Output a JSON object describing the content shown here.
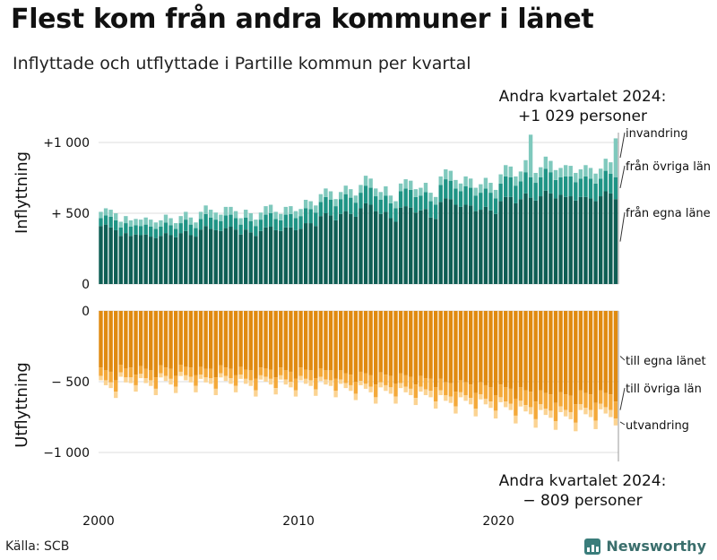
{
  "title": "Flest kom från andra kommuner i länet",
  "subtitle": "Inflyttade och utflyttade i Partille kommun per kvartal",
  "annotation_top": [
    "Andra kvartalet 2024:",
    "+1 029 personer"
  ],
  "annotation_bottom": [
    "Andra kvartalet 2024:",
    "−  809 personer"
  ],
  "source": "Källa: SCB",
  "brand": "Newsworthy",
  "chart_data": [
    {
      "type": "bar",
      "stacked": true,
      "ylabel": "Inflyttning",
      "ylim": [
        0,
        1100
      ],
      "yticks": [
        0,
        500,
        1000
      ],
      "ytick_labels": [
        "0",
        "+  500",
        "+1 000"
      ],
      "x_start": "2000 Q1",
      "xticks": [
        2000,
        2010,
        2020
      ],
      "grid": true,
      "series": [
        {
          "name": "från egna läne",
          "color": "#0e5e54",
          "values": [
            410,
            420,
            400,
            380,
            340,
            360,
            340,
            350,
            345,
            350,
            335,
            325,
            340,
            360,
            345,
            330,
            360,
            375,
            345,
            335,
            385,
            410,
            390,
            380,
            375,
            395,
            405,
            385,
            350,
            385,
            365,
            340,
            375,
            400,
            405,
            380,
            375,
            400,
            400,
            380,
            390,
            430,
            430,
            410,
            480,
            500,
            485,
            450,
            495,
            515,
            495,
            475,
            535,
            570,
            560,
            515,
            495,
            510,
            465,
            440,
            540,
            550,
            540,
            505,
            520,
            530,
            470,
            460,
            580,
            605,
            600,
            560,
            545,
            560,
            555,
            515,
            525,
            545,
            520,
            495,
            585,
            615,
            615,
            570,
            600,
            640,
            610,
            590,
            620,
            660,
            640,
            605,
            630,
            615,
            620,
            590,
            615,
            615,
            605,
            585,
            620,
            655,
            640,
            600
          ]
        },
        {
          "name": "från övriga län",
          "color": "#1e9485",
          "values": [
            55,
            65,
            75,
            70,
            60,
            70,
            65,
            65,
            65,
            70,
            70,
            65,
            65,
            75,
            70,
            60,
            70,
            80,
            75,
            60,
            75,
            85,
            80,
            75,
            70,
            90,
            85,
            80,
            70,
            85,
            80,
            70,
            80,
            90,
            95,
            80,
            75,
            90,
            95,
            85,
            90,
            105,
            100,
            95,
            100,
            115,
            110,
            100,
            105,
            120,
            115,
            100,
            110,
            125,
            120,
            105,
            100,
            115,
            105,
            95,
            115,
            125,
            125,
            110,
            105,
            120,
            115,
            100,
            120,
            135,
            130,
            115,
            110,
            130,
            125,
            110,
            120,
            130,
            125,
            110,
            125,
            145,
            140,
            125,
            125,
            150,
            145,
            125,
            135,
            155,
            150,
            130,
            125,
            145,
            140,
            130,
            130,
            145,
            140,
            125,
            125,
            145,
            140,
            155
          ]
        },
        {
          "name": "invandring",
          "color": "#7fc9bd",
          "values": [
            45,
            50,
            50,
            50,
            40,
            50,
            45,
            45,
            45,
            50,
            50,
            45,
            45,
            55,
            50,
            40,
            50,
            55,
            50,
            40,
            50,
            60,
            55,
            50,
            45,
            60,
            55,
            50,
            45,
            55,
            55,
            45,
            50,
            60,
            60,
            50,
            45,
            55,
            55,
            50,
            50,
            60,
            55,
            50,
            55,
            60,
            60,
            50,
            50,
            60,
            60,
            50,
            55,
            70,
            65,
            55,
            55,
            65,
            55,
            50,
            55,
            65,
            65,
            55,
            55,
            65,
            60,
            55,
            60,
            70,
            70,
            60,
            55,
            70,
            65,
            55,
            60,
            75,
            70,
            60,
            65,
            80,
            75,
            65,
            70,
            85,
            300,
            70,
            70,
            85,
            80,
            70,
            65,
            80,
            75,
            65,
            65,
            80,
            75,
            70,
            70,
            85,
            80,
            274
          ]
        }
      ]
    },
    {
      "type": "bar",
      "stacked": true,
      "ylabel": "Utflyttning",
      "ylim": [
        -1100,
        0
      ],
      "yticks": [
        0,
        -500,
        -1000
      ],
      "ytick_labels": [
        "0",
        "−  500",
        "−1 000"
      ],
      "x_start": "2000 Q1",
      "xticks": [
        2000,
        2010,
        2020
      ],
      "grid": true,
      "series": [
        {
          "name": "till egna länet",
          "color": "#e08a10",
          "values": [
            -400,
            -420,
            -430,
            -490,
            -380,
            -405,
            -400,
            -450,
            -390,
            -410,
            -420,
            -470,
            -385,
            -400,
            -410,
            -460,
            -380,
            -395,
            -400,
            -455,
            -395,
            -410,
            -410,
            -470,
            -385,
            -400,
            -410,
            -455,
            -395,
            -415,
            -420,
            -480,
            -400,
            -405,
            -415,
            -470,
            -400,
            -420,
            -430,
            -480,
            -400,
            -415,
            -420,
            -475,
            -405,
            -420,
            -420,
            -480,
            -420,
            -440,
            -450,
            -500,
            -430,
            -440,
            -455,
            -520,
            -435,
            -450,
            -460,
            -515,
            -440,
            -455,
            -465,
            -520,
            -460,
            -475,
            -480,
            -540,
            -480,
            -505,
            -510,
            -570,
            -490,
            -505,
            -520,
            -580,
            -505,
            -525,
            -540,
            -595,
            -520,
            -540,
            -550,
            -620,
            -540,
            -560,
            -570,
            -640,
            -560,
            -580,
            -590,
            -650,
            -575,
            -590,
            -600,
            -660,
            -560,
            -580,
            -590,
            -650,
            -560,
            -580,
            -590,
            -640
          ]
        },
        {
          "name": "till övriga län",
          "color": "#f4a93a",
          "values": [
            -60,
            -70,
            -75,
            -80,
            -55,
            -65,
            -70,
            -75,
            -55,
            -65,
            -70,
            -80,
            -55,
            -60,
            -70,
            -75,
            -50,
            -60,
            -65,
            -75,
            -55,
            -60,
            -65,
            -80,
            -55,
            -60,
            -65,
            -75,
            -55,
            -65,
            -70,
            -80,
            -55,
            -60,
            -65,
            -75,
            -55,
            -65,
            -70,
            -80,
            -60,
            -65,
            -70,
            -80,
            -60,
            -65,
            -70,
            -85,
            -65,
            -70,
            -75,
            -85,
            -65,
            -75,
            -80,
            -90,
            -70,
            -75,
            -80,
            -90,
            -70,
            -80,
            -85,
            -95,
            -75,
            -80,
            -85,
            -100,
            -80,
            -90,
            -95,
            -105,
            -85,
            -90,
            -95,
            -110,
            -85,
            -95,
            -100,
            -110,
            -90,
            -100,
            -105,
            -120,
            -95,
            -105,
            -110,
            -125,
            -100,
            -110,
            -115,
            -130,
            -100,
            -110,
            -115,
            -130,
            -100,
            -105,
            -110,
            -125,
            -95,
            -100,
            -110,
            -120
          ]
        },
        {
          "name": "utvandring",
          "color": "#fbd392",
          "values": [
            -30,
            -35,
            -40,
            -45,
            -30,
            -35,
            -40,
            -45,
            -30,
            -35,
            -40,
            -45,
            -30,
            -35,
            -40,
            -45,
            -30,
            -35,
            -40,
            -45,
            -30,
            -35,
            -40,
            -45,
            -30,
            -35,
            -40,
            -45,
            -30,
            -35,
            -40,
            -45,
            -30,
            -35,
            -40,
            -45,
            -30,
            -35,
            -40,
            -45,
            -30,
            -35,
            -40,
            -45,
            -30,
            -35,
            -40,
            -45,
            -30,
            -35,
            -40,
            -45,
            -30,
            -35,
            -40,
            -45,
            -35,
            -40,
            -45,
            -50,
            -35,
            -40,
            -45,
            -50,
            -35,
            -40,
            -45,
            -50,
            -35,
            -40,
            -45,
            -50,
            -35,
            -40,
            -45,
            -55,
            -35,
            -40,
            -45,
            -55,
            -35,
            -40,
            -45,
            -55,
            -40,
            -45,
            -50,
            -60,
            -40,
            -45,
            -50,
            -60,
            -40,
            -45,
            -50,
            -60,
            -40,
            -45,
            -50,
            -60,
            -40,
            -45,
            -50,
            -49
          ]
        }
      ]
    }
  ]
}
